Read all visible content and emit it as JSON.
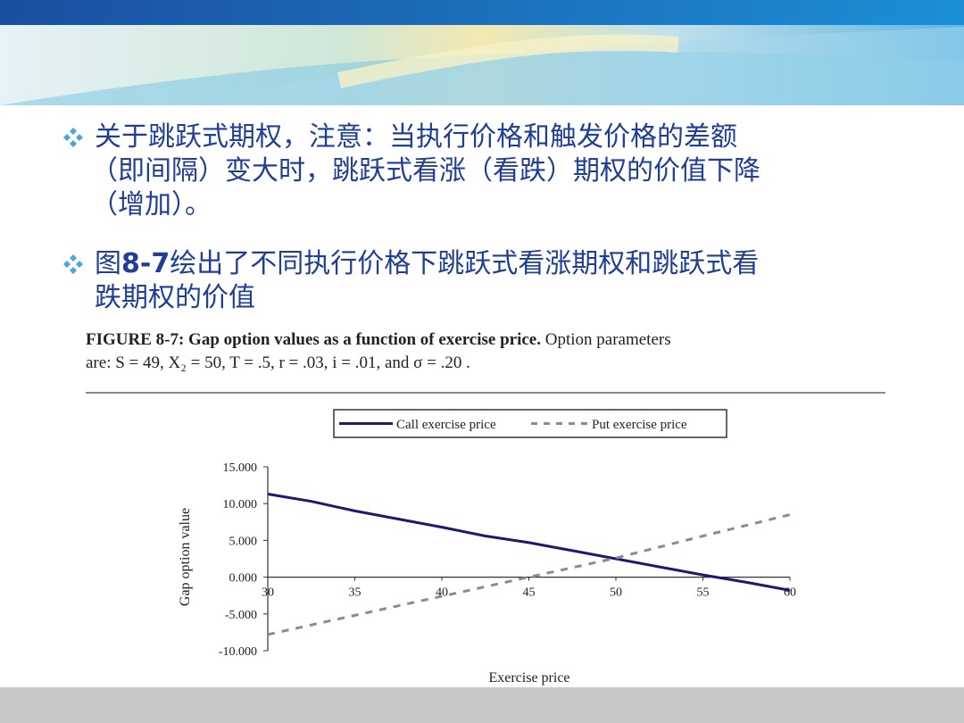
{
  "bullets": [
    {
      "lines": [
        "关于跳跃式期权，注意：当执行价格和触发价格的差额",
        "（即间隔）变大时，跳跃式看涨（看跌）期权的价值下降",
        "（增加）。"
      ]
    },
    {
      "prefix": "图",
      "bold": "8-7",
      "rest": "绘出了不同执行价格下跳跃式看涨期权和跳跃式看",
      "line2": "跌期权的价值"
    }
  ],
  "caption": {
    "bold": "FIGURE 8-7: Gap option values as a function of exercise price.",
    "normal": " Option parameters",
    "line2": "are: S = 49,  X₂ = 50,  T = .5,  r = .03,  i = .01,  and  σ = .20 ."
  },
  "colors": {
    "call": "#1a1a6e",
    "put": "#8c8c8c",
    "bullet_text": "#1f3f95",
    "diamond": "#4fa3d9"
  },
  "chart_data": {
    "type": "line",
    "xlabel": "Exercise price",
    "ylabel": "Gap option value",
    "xlim": [
      30,
      60
    ],
    "ylim": [
      -10,
      15
    ],
    "x_ticks": [
      "30",
      "35",
      "40",
      "45",
      "50",
      "55",
      "60"
    ],
    "y_ticks": [
      "15.000",
      "10.000",
      "5.000",
      "0.000",
      "-5.000",
      "-10.000"
    ],
    "legend_position": "top",
    "series": [
      {
        "name": "Call exercise price",
        "style": "solid",
        "x": [
          30,
          32.5,
          35,
          37.5,
          40,
          42.5,
          45,
          47.5,
          50,
          52.5,
          55,
          57.5,
          60
        ],
        "y": [
          11.3,
          10.3,
          9.0,
          7.9,
          6.8,
          5.6,
          4.7,
          3.6,
          2.5,
          1.4,
          0.3,
          -0.7,
          -1.8
        ]
      },
      {
        "name": "Put exercise price",
        "style": "dashed",
        "x": [
          30,
          35,
          40,
          45,
          50,
          55,
          60
        ],
        "y": [
          -7.8,
          -5.2,
          -2.6,
          0.0,
          2.6,
          5.6,
          8.5
        ]
      }
    ]
  }
}
